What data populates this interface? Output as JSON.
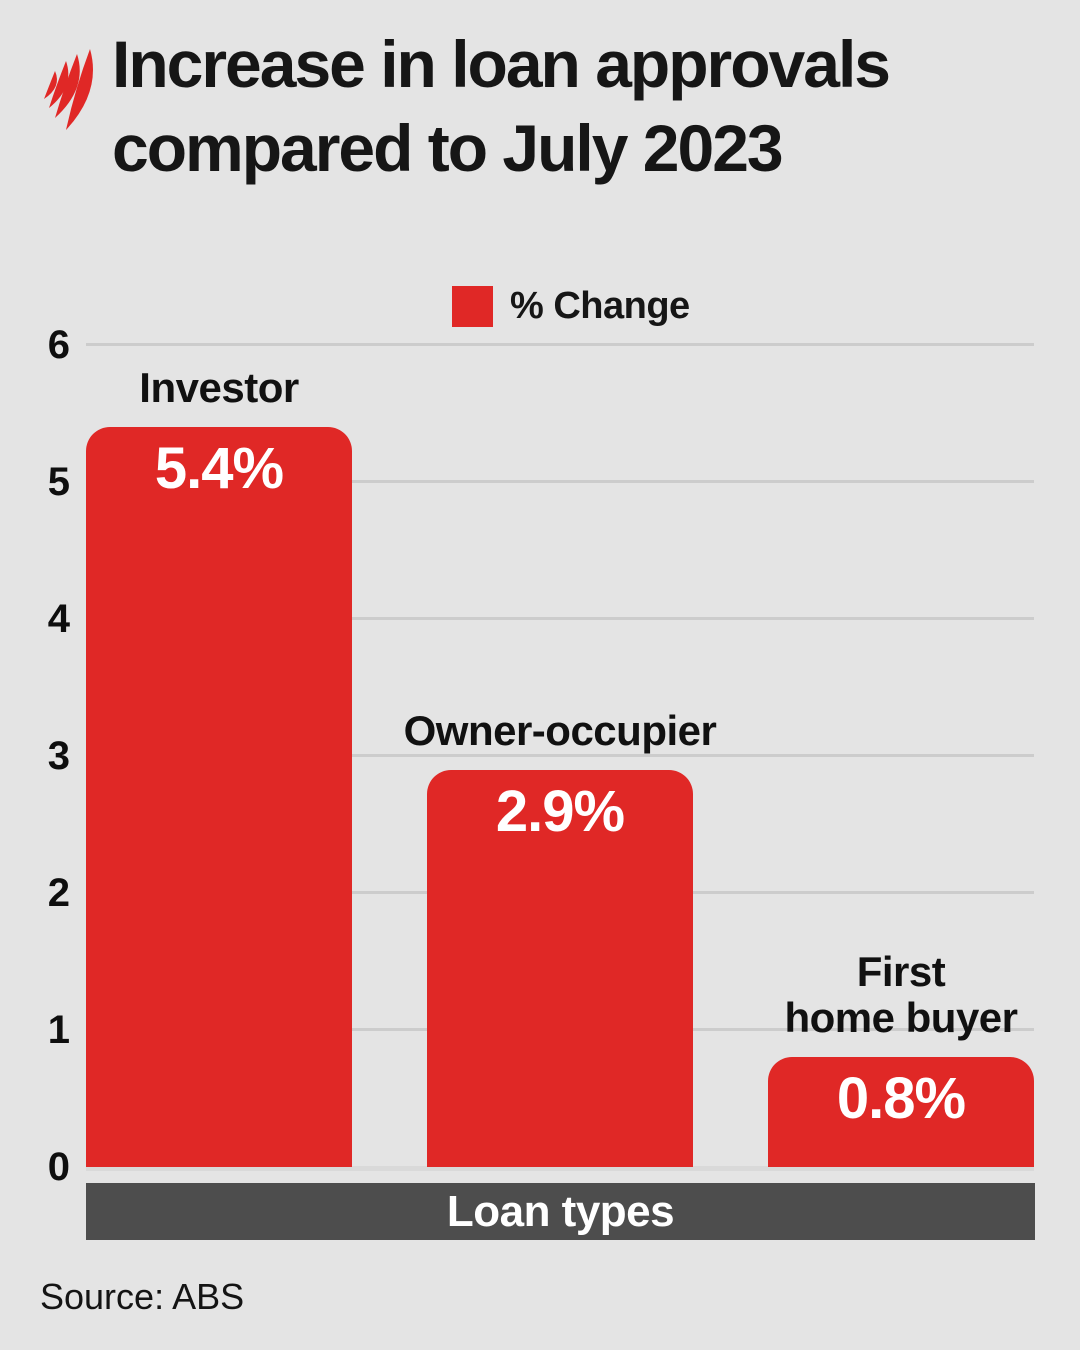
{
  "header": {
    "title_line1": "Increase in loan approvals",
    "title_line2": "compared to July 2023",
    "logo": "sbs-mercator-logo"
  },
  "legend": {
    "label": "% Change",
    "swatch_color": "#e02826"
  },
  "chart_data": {
    "type": "bar",
    "title": "Increase in loan approvals compared to July 2023",
    "categories": [
      "Investor",
      "Owner-occupier",
      "First\nhome buyer"
    ],
    "values": [
      5.4,
      2.9,
      0.8
    ],
    "value_labels": [
      "5.4%",
      "2.9%",
      "0.8%"
    ],
    "xlabel": "Loan types",
    "ylabel": "",
    "ylim": [
      0,
      6
    ],
    "yticks": [
      0,
      1,
      2,
      3,
      4,
      5,
      6
    ],
    "grid": true,
    "legend_entries": [
      "% Change"
    ],
    "legend_position": "top-center",
    "bar_color": "#e02826"
  },
  "xaxis_band": {
    "label": "Loan types"
  },
  "footer": {
    "source": "Source: ABS"
  },
  "colors": {
    "background": "#e4e4e4",
    "bar": "#e02826",
    "band": "#4d4d4d",
    "gridline": "#cccccc",
    "text": "#161616"
  }
}
